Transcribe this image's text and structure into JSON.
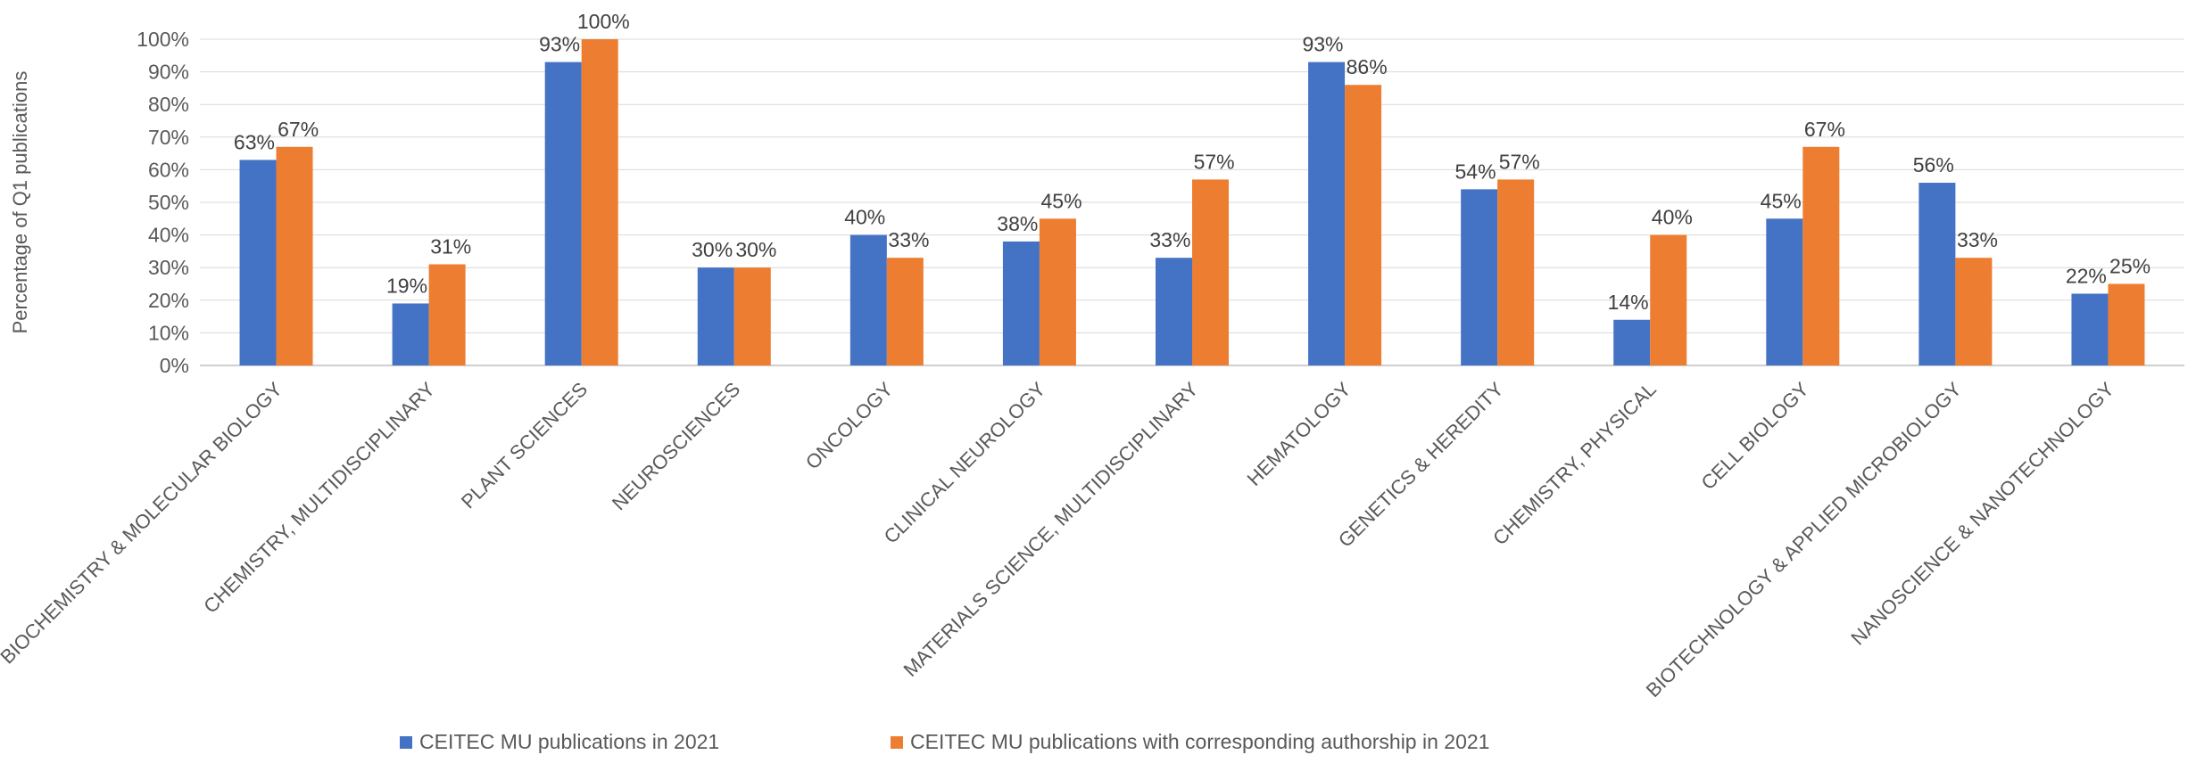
{
  "chart_data": {
    "type": "bar",
    "ylabel": "Percentage of Q1 publications",
    "ylim": [
      0,
      100
    ],
    "y_ticks": [
      0,
      10,
      20,
      30,
      40,
      50,
      60,
      70,
      80,
      90,
      100
    ],
    "y_tick_labels": [
      "0%",
      "10%",
      "20%",
      "30%",
      "40%",
      "50%",
      "60%",
      "70%",
      "80%",
      "90%",
      "100%"
    ],
    "grid": true,
    "legend_position": "bottom",
    "categories": [
      "BIOCHEMISTRY & MOLECULAR BIOLOGY",
      "CHEMISTRY, MULTIDISCIPLINARY",
      "PLANT SCIENCES",
      "NEUROSCIENCES",
      "ONCOLOGY",
      "CLINICAL NEUROLOGY",
      "MATERIALS SCIENCE, MULTIDISCIPLINARY",
      "HEMATOLOGY",
      "GENETICS & HEREDITY",
      "CHEMISTRY, PHYSICAL",
      "CELL BIOLOGY",
      "BIOTECHNOLOGY & APPLIED MICROBIOLOGY",
      "NANOSCIENCE & NANOTECHNOLOGY"
    ],
    "series": [
      {
        "name": "CEITEC MU publications in 2021",
        "color": "#4472C4",
        "values": [
          63,
          19,
          93,
          30,
          40,
          38,
          33,
          93,
          54,
          14,
          45,
          56,
          22
        ],
        "labels": [
          "63%",
          "19%",
          "93%",
          "30%",
          "40%",
          "38%",
          "33%",
          "93%",
          "54%",
          "14%",
          "45%",
          "56%",
          "22%"
        ]
      },
      {
        "name": "CEITEC MU publications with corresponding authorship in 2021",
        "color": "#ED7D31",
        "values": [
          67,
          31,
          100,
          30,
          33,
          45,
          57,
          86,
          57,
          40,
          67,
          33,
          25
        ],
        "labels": [
          "67%",
          "31%",
          "100%",
          "30%",
          "33%",
          "45%",
          "57%",
          "86%",
          "57%",
          "40%",
          "67%",
          "33%",
          "25%"
        ]
      }
    ]
  }
}
